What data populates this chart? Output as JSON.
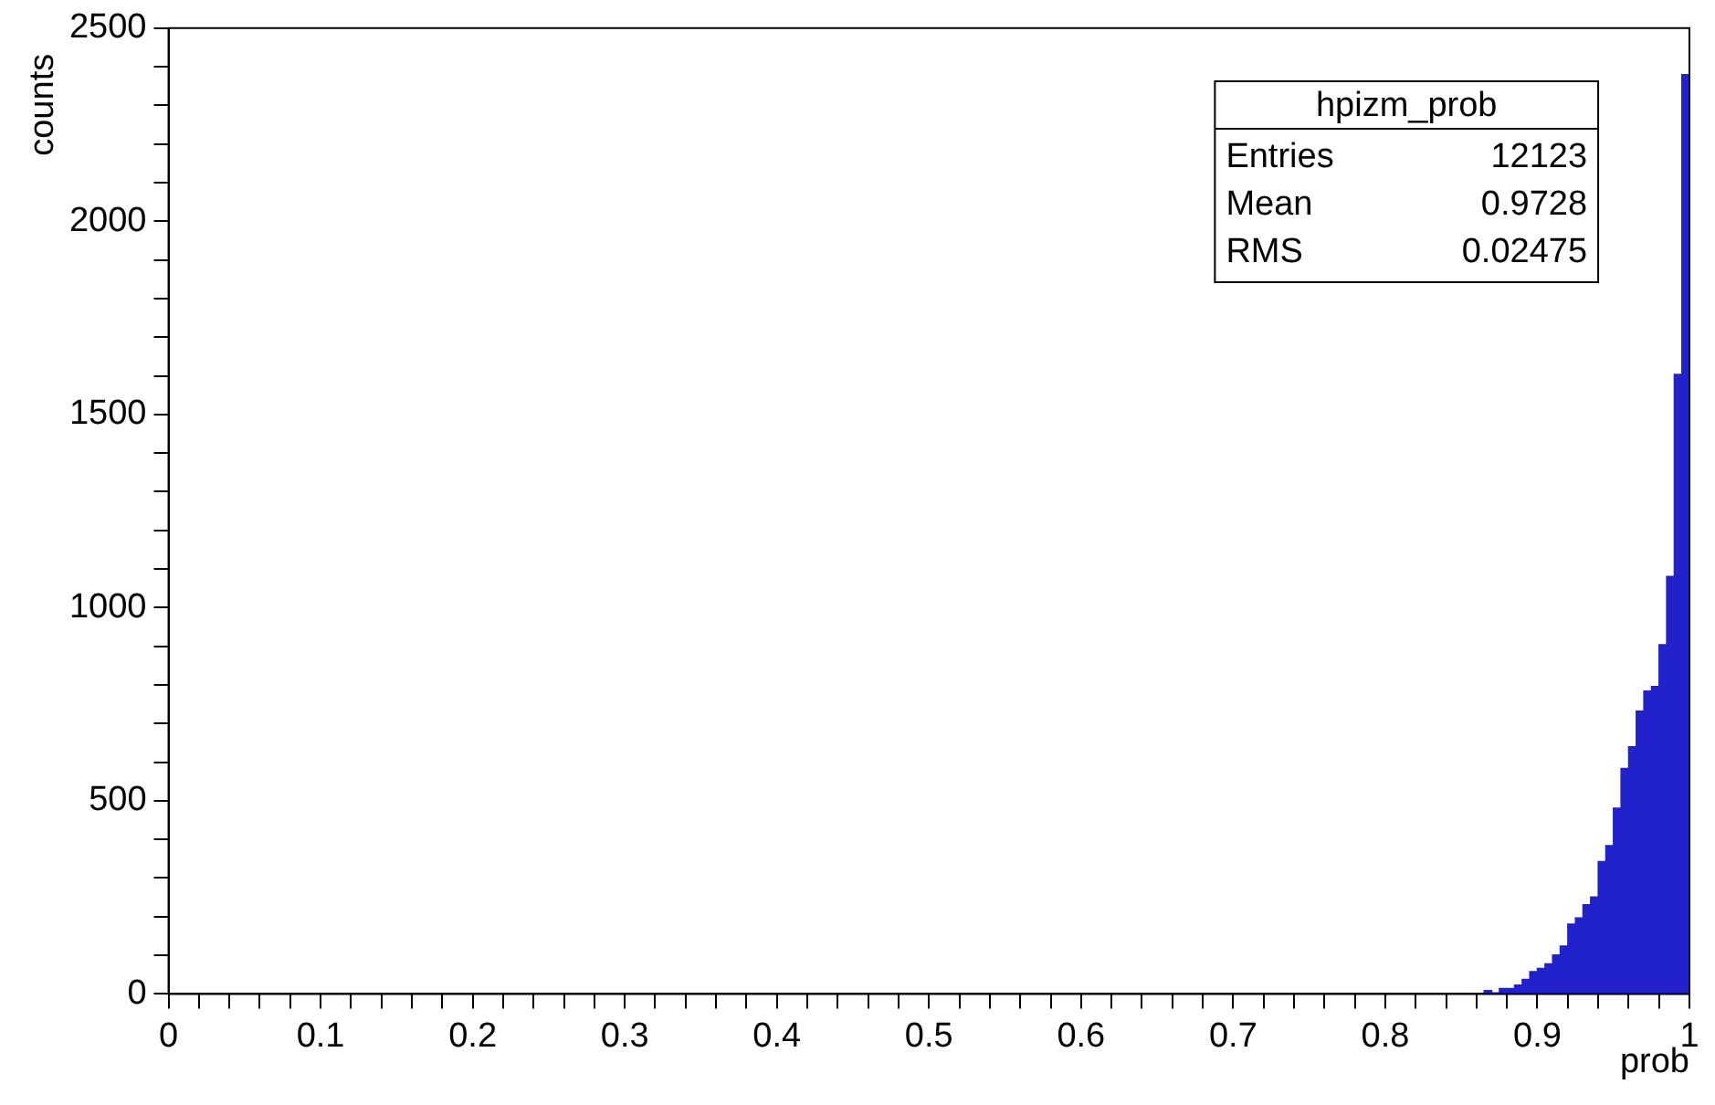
{
  "chart_data": {
    "type": "histogram",
    "title": "hpizm_prob",
    "xlabel": "prob",
    "ylabel": "counts",
    "annotations": [
      "Entries",
      "12123",
      "Mean",
      "0.9728",
      "RMS",
      "0.02475"
    ],
    "bins": [
      0.865,
      0.87,
      0.875,
      0.88,
      0.885,
      0.89,
      0.895,
      0.9,
      0.905,
      0.91,
      0.915,
      0.92,
      0.925,
      0.93,
      0.935,
      0.94,
      0.945,
      0.95,
      0.955,
      0.96,
      0.965,
      0.97,
      0.975,
      0.98,
      0.985,
      0.99,
      0.995,
      1
    ],
    "values": [
      9,
      3,
      14,
      14,
      23,
      38,
      58,
      66,
      78,
      101,
      124,
      181,
      197,
      231,
      251,
      343,
      384,
      481,
      584,
      640,
      732,
      784,
      796,
      904,
      1081,
      1604,
      2380
    ],
    "color": "#2222cc",
    "xlim": [
      0,
      1
    ],
    "xticks": [
      0,
      {
        "value": 0.02,
        "label": null
      },
      {
        "value": 0.04,
        "label": null
      },
      {
        "value": 0.06,
        "label": null
      },
      {
        "value": 0.08,
        "label": null
      },
      0.1,
      {
        "value": 0.12,
        "label": null
      },
      {
        "value": 0.14,
        "label": null
      },
      {
        "value": 0.16,
        "label": null
      },
      {
        "value": 0.18,
        "label": null
      },
      0.2,
      {
        "value": 0.22,
        "label": null
      },
      {
        "value": 0.24,
        "label": null
      },
      {
        "value": 0.26,
        "label": null
      },
      {
        "value": 0.28,
        "label": null
      },
      0.3,
      {
        "value": 0.32,
        "label": null
      },
      {
        "value": 0.34,
        "label": null
      },
      {
        "value": 0.36,
        "label": null
      },
      {
        "value": 0.38,
        "label": null
      },
      0.4,
      {
        "value": 0.42,
        "label": null
      },
      {
        "value": 0.44,
        "label": null
      },
      {
        "value": 0.46,
        "label": null
      },
      {
        "value": 0.48,
        "label": null
      },
      0.5,
      {
        "value": 0.52,
        "label": null
      },
      {
        "value": 0.54,
        "label": null
      },
      {
        "value": 0.56,
        "label": null
      },
      {
        "value": 0.58,
        "label": null
      },
      0.6,
      {
        "value": 0.62,
        "label": null
      },
      {
        "value": 0.64,
        "label": null
      },
      {
        "value": 0.66,
        "label": null
      },
      {
        "value": 0.68,
        "label": null
      },
      0.7,
      {
        "value": 0.72,
        "label": null
      },
      {
        "value": 0.74,
        "label": null
      },
      {
        "value": 0.76,
        "label": null
      },
      {
        "value": 0.78,
        "label": null
      },
      0.8,
      {
        "value": 0.82,
        "label": null
      },
      {
        "value": 0.84,
        "label": null
      },
      {
        "value": 0.86,
        "label": null
      },
      {
        "value": 0.88,
        "label": null
      },
      0.9,
      {
        "value": 0.92,
        "label": null
      },
      {
        "value": 0.94,
        "label": null
      },
      {
        "value": 0.96,
        "label": null
      },
      {
        "value": 0.98,
        "label": null
      },
      1
    ],
    "ylim": [
      0,
      2500
    ],
    "yticks": [
      0,
      {
        "value": 100,
        "label": null
      },
      {
        "value": 200,
        "label": null
      },
      {
        "value": 300,
        "label": null
      },
      {
        "value": 400,
        "label": null
      },
      500,
      {
        "value": 600,
        "label": null
      },
      {
        "value": 700,
        "label": null
      },
      {
        "value": 800,
        "label": null
      },
      {
        "value": 900,
        "label": null
      },
      1000,
      {
        "value": 1100,
        "label": null
      },
      {
        "value": 1200,
        "label": null
      },
      {
        "value": 1300,
        "label": null
      },
      {
        "value": 1400,
        "label": null
      },
      1500,
      {
        "value": 1600,
        "label": null
      },
      {
        "value": 1700,
        "label": null
      },
      {
        "value": 1800,
        "label": null
      },
      {
        "value": 1900,
        "label": null
      },
      2000,
      {
        "value": 2100,
        "label": null
      },
      {
        "value": 2200,
        "label": null
      },
      {
        "value": 2300,
        "label": null
      },
      {
        "value": 2400,
        "label": null
      },
      2500
    ],
    "grid": false,
    "legend": false
  }
}
